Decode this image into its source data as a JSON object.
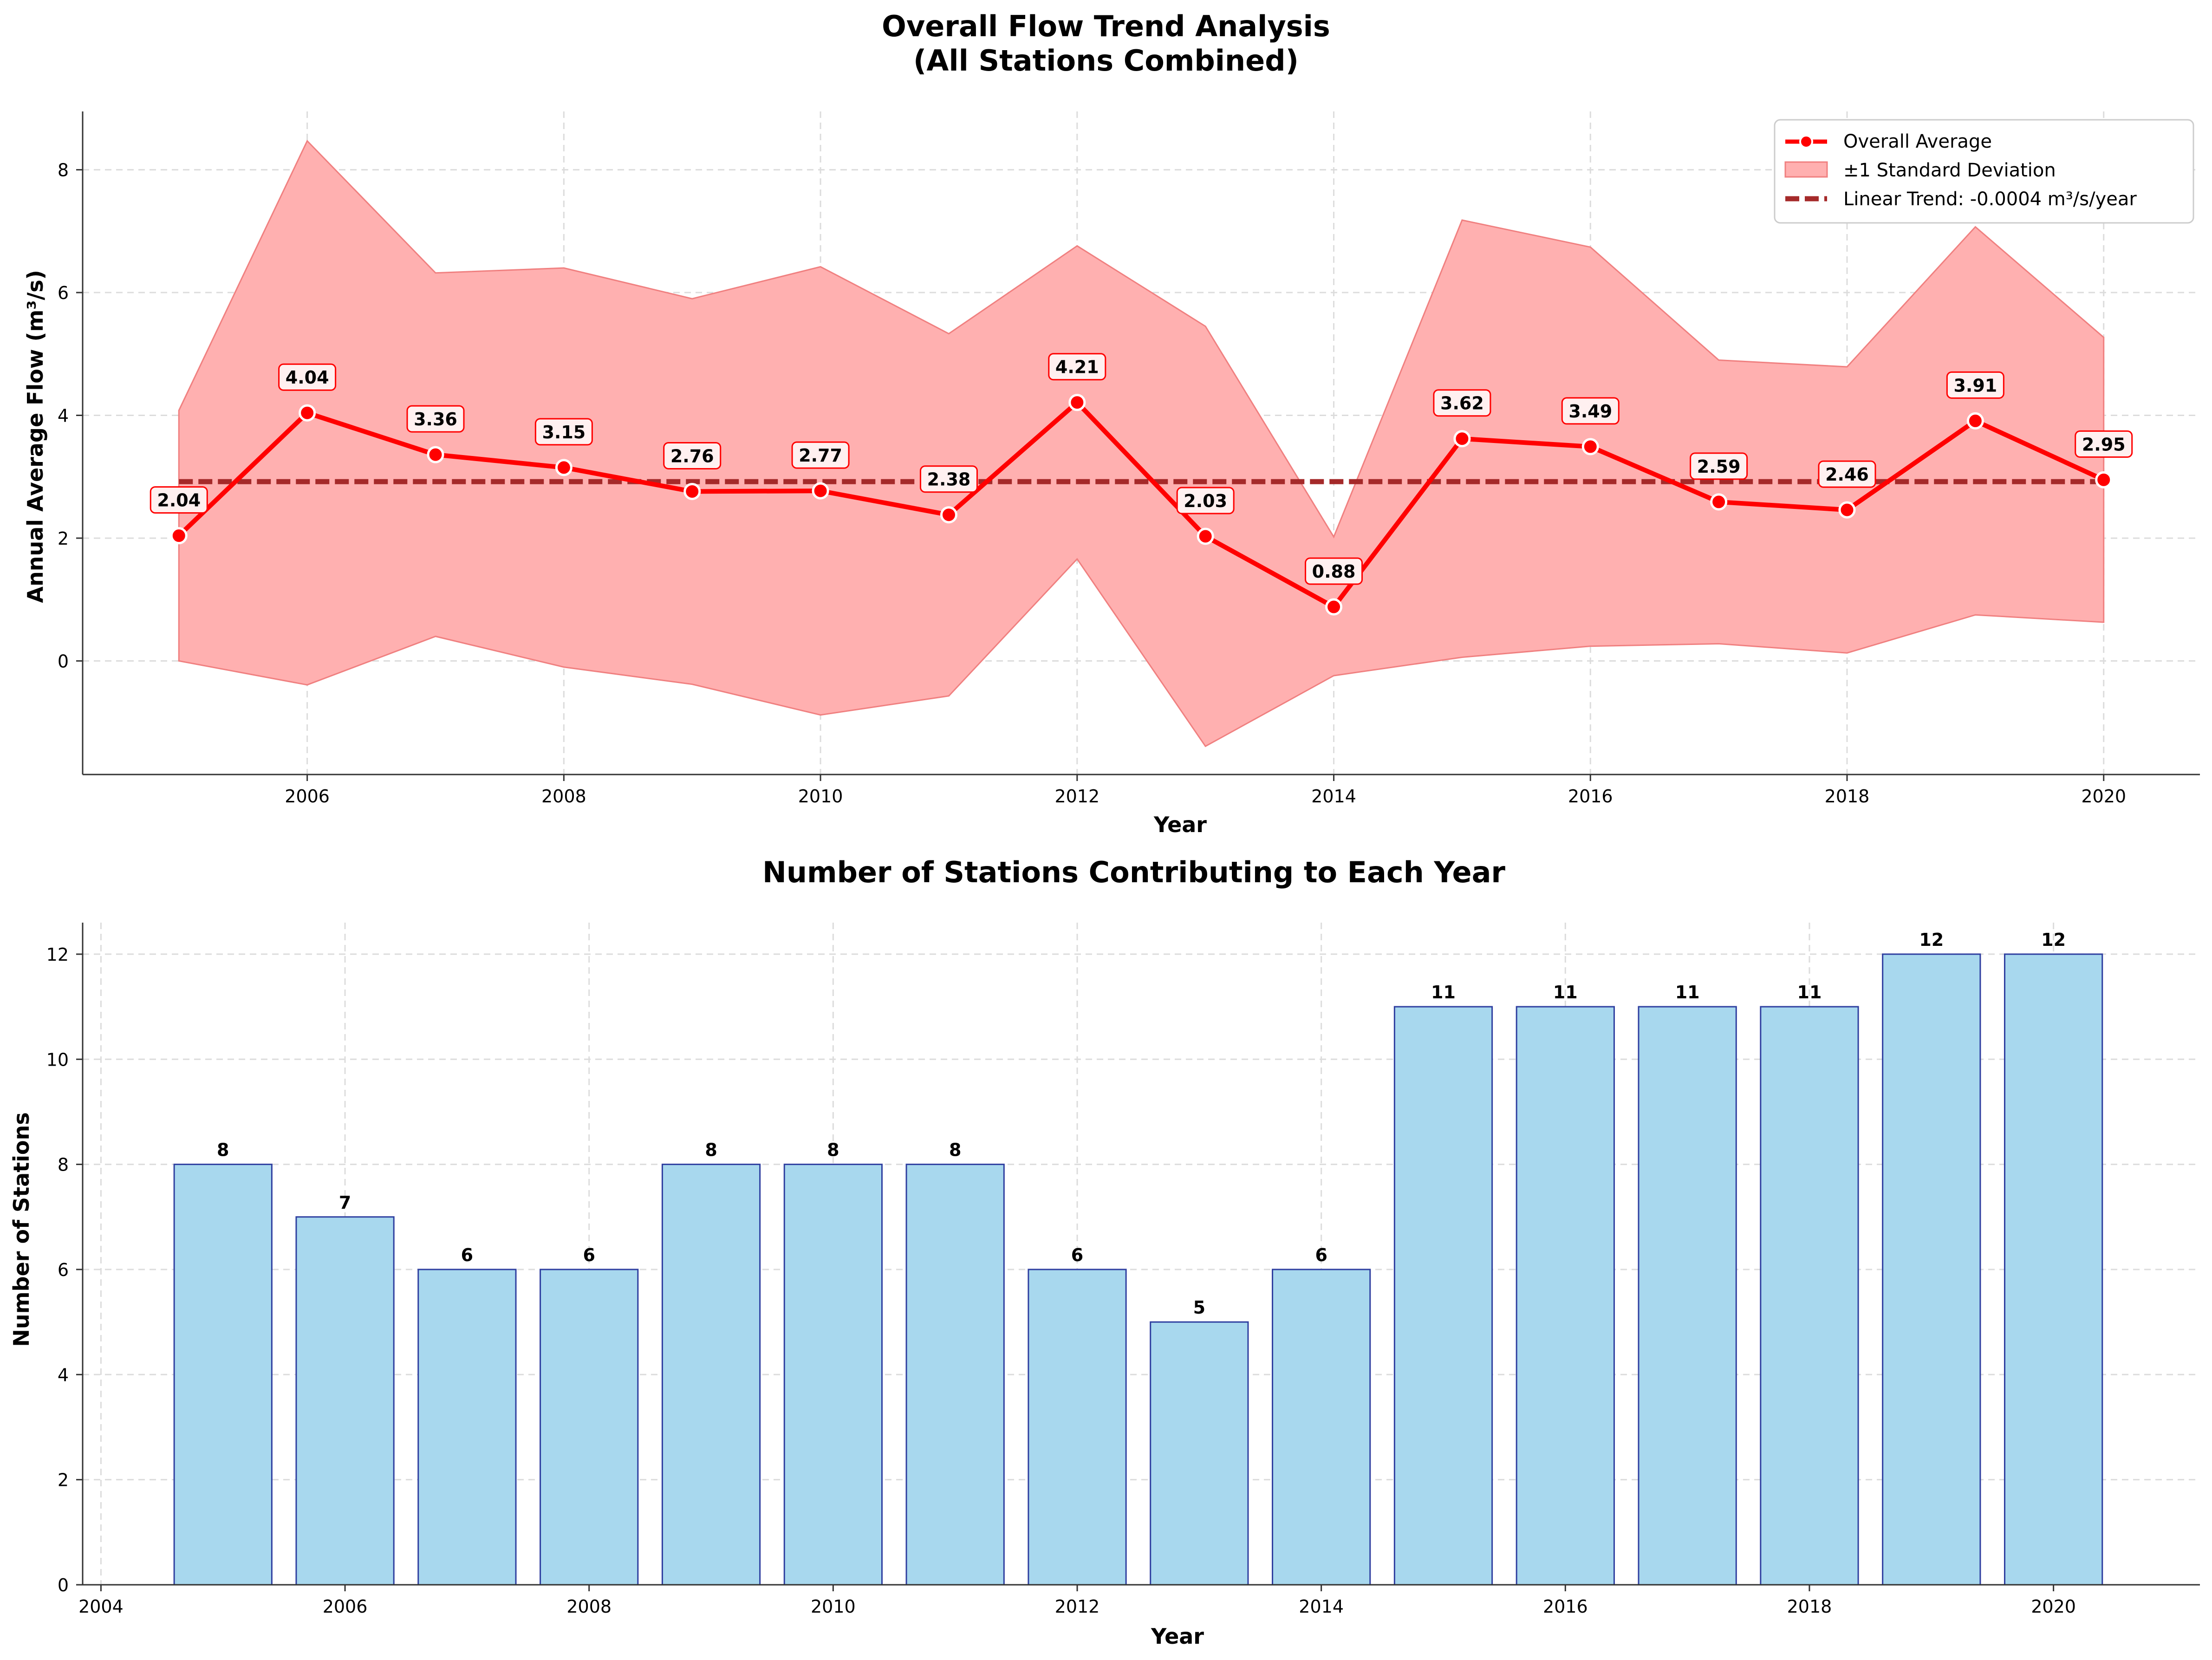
{
  "colors": {
    "line": "#ff0000",
    "band": "#ffb0b0",
    "band_edge": "#f08080",
    "trend": "#a52a2a",
    "bar_fill": "#a8d8ee",
    "bar_edge": "#2f3fa0",
    "marker_edge": "#ffffff",
    "ann_box": "#fff0f0",
    "ann_edge": "#ff0000"
  },
  "chart_data": [
    {
      "type": "line",
      "title": "Overall Flow Trend Analysis\n(All Stations Combined)",
      "title_lines": [
        "Overall Flow Trend Analysis",
        "(All Stations Combined)"
      ],
      "xlabel": "Year",
      "ylabel": "Annual Average Flow (m³/s)",
      "xlim": [
        2004.25,
        2020.75
      ],
      "ylim": [
        -1.85,
        8.95
      ],
      "xticks": [
        2006,
        2008,
        2010,
        2012,
        2014,
        2016,
        2018,
        2020
      ],
      "yticks": [
        0,
        2,
        4,
        6,
        8
      ],
      "grid": true,
      "legend_position": "top-right",
      "x": [
        2005,
        2006,
        2007,
        2008,
        2009,
        2010,
        2011,
        2012,
        2013,
        2014,
        2015,
        2016,
        2017,
        2018,
        2019,
        2020
      ],
      "series": [
        {
          "name": "Overall Average",
          "values": [
            2.04,
            4.04,
            3.36,
            3.15,
            2.76,
            2.77,
            2.38,
            4.21,
            2.03,
            0.88,
            3.62,
            3.49,
            2.59,
            2.46,
            3.91,
            2.95
          ],
          "data_labels": [
            "2.04",
            "4.04",
            "3.36",
            "3.15",
            "2.76",
            "2.77",
            "2.38",
            "4.21",
            "2.03",
            "0.88",
            "3.62",
            "3.49",
            "2.59",
            "2.46",
            "3.91",
            "2.95"
          ]
        },
        {
          "name": "±1 Standard Deviation",
          "upper": [
            4.08,
            8.47,
            6.32,
            6.4,
            5.9,
            6.42,
            5.33,
            6.76,
            5.45,
            2.02,
            7.18,
            6.74,
            4.9,
            4.79,
            7.07,
            5.27
          ],
          "lower": [
            0.0,
            -0.39,
            0.4,
            -0.1,
            -0.38,
            -0.88,
            -0.57,
            1.66,
            -1.39,
            -0.24,
            0.06,
            0.24,
            0.28,
            0.13,
            0.75,
            0.63
          ]
        },
        {
          "name": "Linear Trend: -0.0004 m³/s/year",
          "start": 2.92,
          "end": 2.92
        }
      ]
    },
    {
      "type": "bar",
      "title": "Number of Stations Contributing to Each Year",
      "xlabel": "Year",
      "ylabel": "Number of Stations",
      "xlim": [
        2003.85,
        2021.2
      ],
      "ylim": [
        0,
        12.6
      ],
      "xticks": [
        2004,
        2006,
        2008,
        2010,
        2012,
        2014,
        2016,
        2018,
        2020
      ],
      "yticks": [
        0,
        2,
        4,
        6,
        8,
        10,
        12
      ],
      "grid": true,
      "categories": [
        2005,
        2006,
        2007,
        2008,
        2009,
        2010,
        2011,
        2012,
        2013,
        2014,
        2015,
        2016,
        2017,
        2018,
        2019,
        2020
      ],
      "values": [
        8,
        7,
        6,
        6,
        8,
        8,
        8,
        6,
        5,
        6,
        11,
        11,
        11,
        11,
        12,
        12
      ],
      "data_labels": [
        "8",
        "7",
        "6",
        "6",
        "8",
        "8",
        "8",
        "6",
        "5",
        "6",
        "11",
        "11",
        "11",
        "11",
        "12",
        "12"
      ]
    }
  ]
}
